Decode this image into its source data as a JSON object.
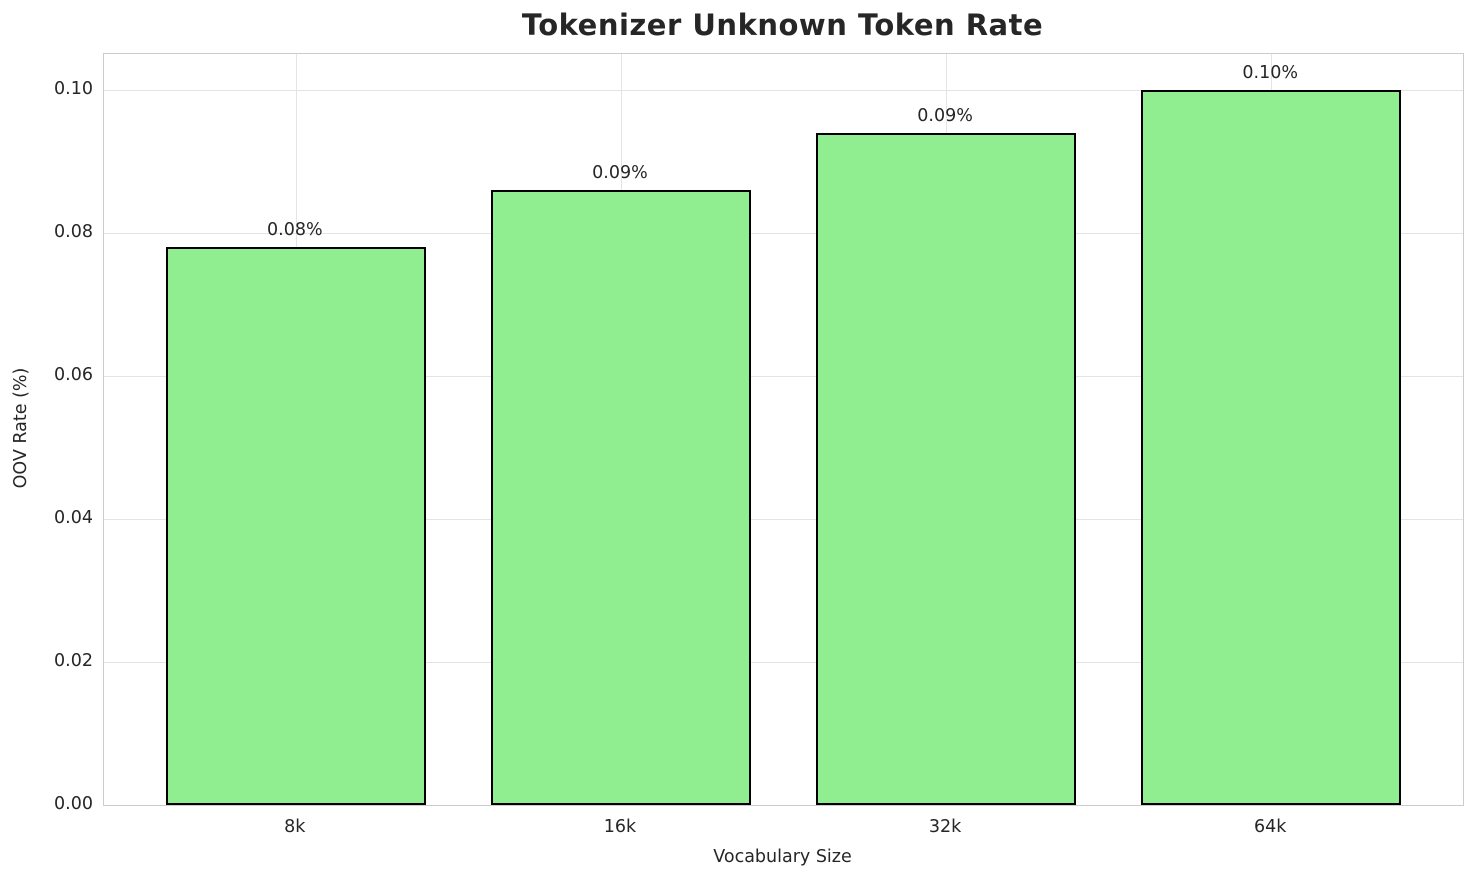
{
  "chart_data": {
    "type": "bar",
    "title": "Tokenizer Unknown Token Rate",
    "xlabel": "Vocabulary Size",
    "ylabel": "OOV Rate (%)",
    "categories": [
      "8k",
      "16k",
      "32k",
      "64k"
    ],
    "values": [
      0.078,
      0.086,
      0.094,
      0.1
    ],
    "bar_labels": [
      "0.08%",
      "0.09%",
      "0.09%",
      "0.10%"
    ],
    "yticks": [
      0.0,
      0.02,
      0.04,
      0.06,
      0.08,
      0.1
    ],
    "ytick_labels": [
      "0.00",
      "0.02",
      "0.04",
      "0.06",
      "0.08",
      "0.10"
    ],
    "ylim": [
      0,
      0.105
    ],
    "grid": true,
    "legend": "none",
    "colors": {
      "bar_fill": "#90EE90",
      "bar_edge": "#000000",
      "text": "#262626",
      "grid": "#e4e4e4",
      "spine": "#cccccc",
      "background": "#ffffff"
    }
  }
}
